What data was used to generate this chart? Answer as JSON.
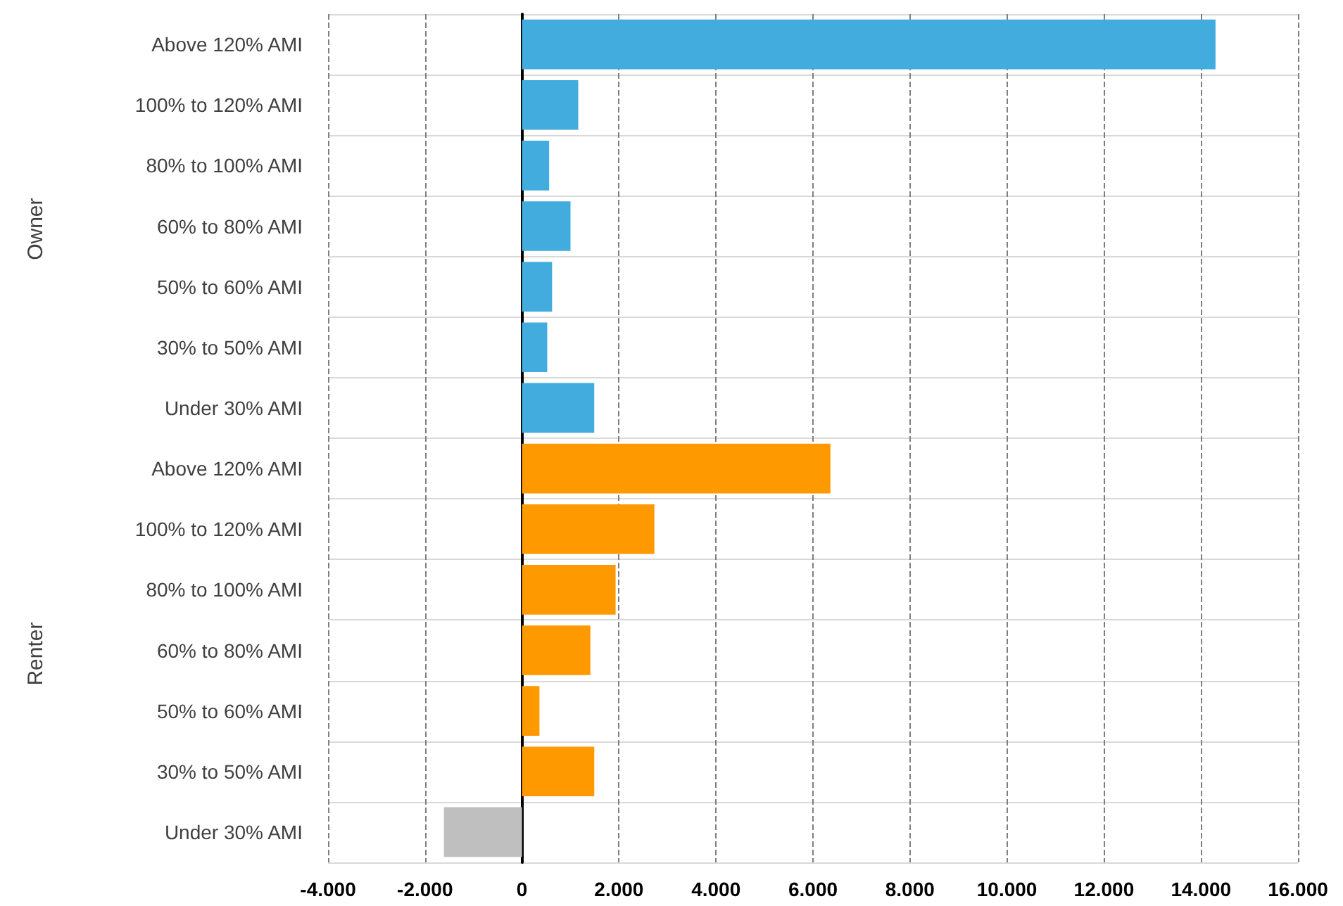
{
  "chart_data": {
    "type": "bar",
    "orientation": "horizontal",
    "categories": [
      "Above 120% AMI",
      "100% to 120% AMI",
      "80% to 100% AMI",
      "60% to 80% AMI",
      "50% to 60% AMI",
      "30% to 50% AMI",
      "Under 30% AMI",
      "Above 120% AMI",
      "100% to 120% AMI",
      "80% to 100% AMI",
      "60% to 80% AMI",
      "50% to 60% AMI",
      "30% to 50% AMI",
      "Under 30% AMI"
    ],
    "values": [
      14300,
      1160,
      560,
      1000,
      620,
      520,
      1490,
      6360,
      2730,
      1930,
      1410,
      360,
      1490,
      -1610
    ],
    "colors": [
      "#41acdd",
      "#41acdd",
      "#41acdd",
      "#41acdd",
      "#41acdd",
      "#41acdd",
      "#41acdd",
      "#ff9900",
      "#ff9900",
      "#ff9900",
      "#ff9900",
      "#ff9900",
      "#ff9900",
      "#bfbfbf"
    ],
    "xlim": [
      -4000,
      16000
    ],
    "xticks": [
      {
        "value": -4000,
        "label": "-4.000"
      },
      {
        "value": -2000,
        "label": "-2.000"
      },
      0,
      {
        "value": 2000,
        "label": "2.000"
      },
      {
        "value": 4000,
        "label": "4.000"
      },
      {
        "value": 6000,
        "label": "6.000"
      },
      {
        "value": 8000,
        "label": "8.000"
      },
      {
        "value": 10000,
        "label": "10.000"
      },
      {
        "value": 12000,
        "label": "12.000"
      },
      {
        "value": 14000,
        "label": "14.000"
      },
      {
        "value": 16000,
        "label": "16.000"
      }
    ],
    "annotations": [
      "Owner",
      "Renter"
    ],
    "grid": true
  }
}
